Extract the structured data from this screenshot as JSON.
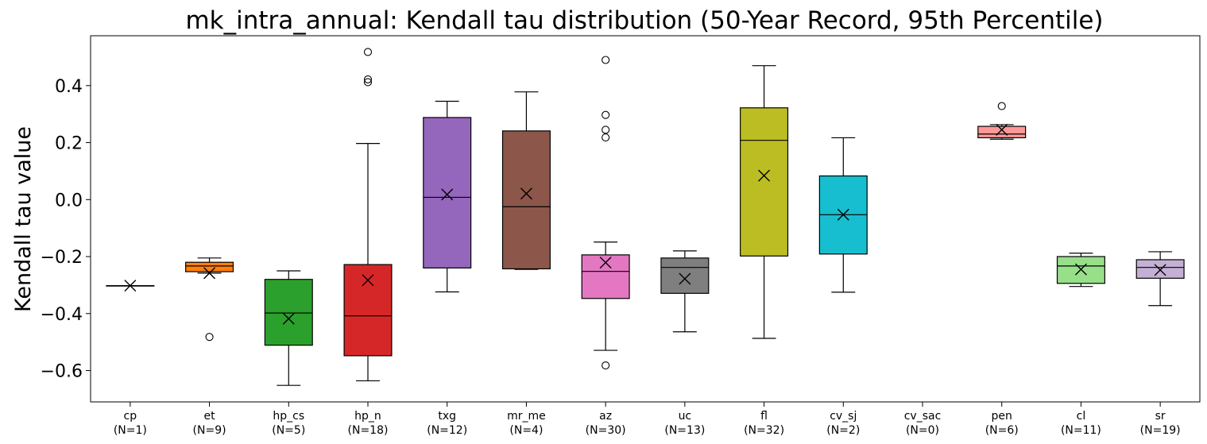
{
  "chart_data": {
    "type": "box",
    "title": "mk_intra_annual: Kendall tau distribution (50-Year Record, 95th Percentile)",
    "xlabel": "",
    "ylabel": "Kendall tau value",
    "ylim": [
      -0.71,
      0.575
    ],
    "yticks": [
      -0.6,
      -0.4,
      -0.2,
      0.0,
      0.2,
      0.4
    ],
    "ytick_labels": [
      "−0.6",
      "−0.4",
      "−0.2",
      "0.0",
      "0.2",
      "0.4"
    ],
    "grid": false,
    "mean_marker": "x",
    "categories": [
      "cp",
      "et",
      "hp_cs",
      "hp_n",
      "txg",
      "mr_me",
      "az",
      "uc",
      "fl",
      "cv_sj",
      "cv_sac",
      "pen",
      "cl",
      "sr"
    ],
    "counts": [
      "(N=1)",
      "(N=9)",
      "(N=5)",
      "(N=18)",
      "(N=12)",
      "(N=4)",
      "(N=30)",
      "(N=13)",
      "(N=32)",
      "(N=2)",
      "(N=0)",
      "(N=6)",
      "(N=11)",
      "(N=19)"
    ],
    "colors": [
      "#1f77b4",
      "#ff7f0e",
      "#2ca02c",
      "#d62728",
      "#9467bd",
      "#8c564b",
      "#e377c2",
      "#7f7f7f",
      "#bcbd22",
      "#17becf",
      "#aec7e8",
      "#ff9896",
      "#98df8a",
      "#c5b0d5"
    ],
    "boxes": [
      {
        "whislo": -0.302,
        "q1": -0.302,
        "med": -0.302,
        "q3": -0.302,
        "whishi": -0.302,
        "mean": -0.302,
        "fliers": []
      },
      {
        "whislo": -0.258,
        "q1": -0.253,
        "med": -0.233,
        "q3": -0.22,
        "whishi": -0.205,
        "mean": -0.258,
        "fliers": [
          -0.482
        ]
      },
      {
        "whislo": -0.652,
        "q1": -0.511,
        "med": -0.398,
        "q3": -0.28,
        "whishi": -0.25,
        "mean": -0.418,
        "fliers": []
      },
      {
        "whislo": -0.636,
        "q1": -0.548,
        "med": -0.408,
        "q3": -0.228,
        "whishi": 0.197,
        "mean": -0.283,
        "fliers": [
          0.412,
          0.422,
          0.518
        ]
      },
      {
        "whislo": -0.324,
        "q1": -0.24,
        "med": 0.008,
        "q3": 0.288,
        "whishi": 0.345,
        "mean": 0.018,
        "fliers": []
      },
      {
        "whislo": -0.245,
        "q1": -0.243,
        "med": -0.025,
        "q3": 0.241,
        "whishi": 0.378,
        "mean": 0.021,
        "fliers": []
      },
      {
        "whislo": -0.529,
        "q1": -0.347,
        "med": -0.252,
        "q3": -0.194,
        "whishi": -0.149,
        "mean": -0.221,
        "fliers": [
          -0.582,
          0.218,
          0.245,
          0.297,
          0.49
        ]
      },
      {
        "whislo": -0.464,
        "q1": -0.329,
        "med": -0.238,
        "q3": -0.205,
        "whishi": -0.18,
        "mean": -0.278,
        "fliers": []
      },
      {
        "whislo": -0.487,
        "q1": -0.198,
        "med": 0.208,
        "q3": 0.322,
        "whishi": 0.47,
        "mean": 0.084,
        "fliers": []
      },
      {
        "whislo": -0.325,
        "q1": -0.191,
        "med": -0.053,
        "q3": 0.083,
        "whishi": 0.217,
        "mean": -0.053,
        "fliers": []
      },
      null,
      {
        "whislo": 0.212,
        "q1": 0.217,
        "med": 0.23,
        "q3": 0.257,
        "whishi": 0.263,
        "mean": 0.245,
        "fliers": [
          0.328
        ]
      },
      {
        "whislo": -0.305,
        "q1": -0.294,
        "med": -0.233,
        "q3": -0.2,
        "whishi": -0.188,
        "mean": -0.245,
        "fliers": []
      },
      {
        "whislo": -0.372,
        "q1": -0.276,
        "med": -0.238,
        "q3": -0.211,
        "whishi": -0.183,
        "mean": -0.247,
        "fliers": []
      }
    ]
  }
}
